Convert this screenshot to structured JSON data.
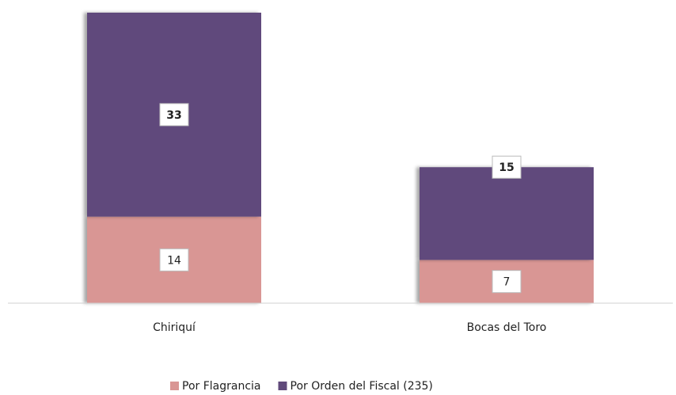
{
  "chart_data": {
    "type": "stacked_bar",
    "categories": [
      "Chiriquí",
      "Bocas del Toro"
    ],
    "series": [
      {
        "name": "Por Flagrancia",
        "color": "#d99694",
        "values": [
          14,
          7
        ]
      },
      {
        "name": "Por Orden del Fiscal (235)",
        "color": "#604a7b",
        "values": [
          33,
          15
        ]
      }
    ],
    "ylim": [
      0,
      47
    ],
    "legend": "bottom"
  }
}
